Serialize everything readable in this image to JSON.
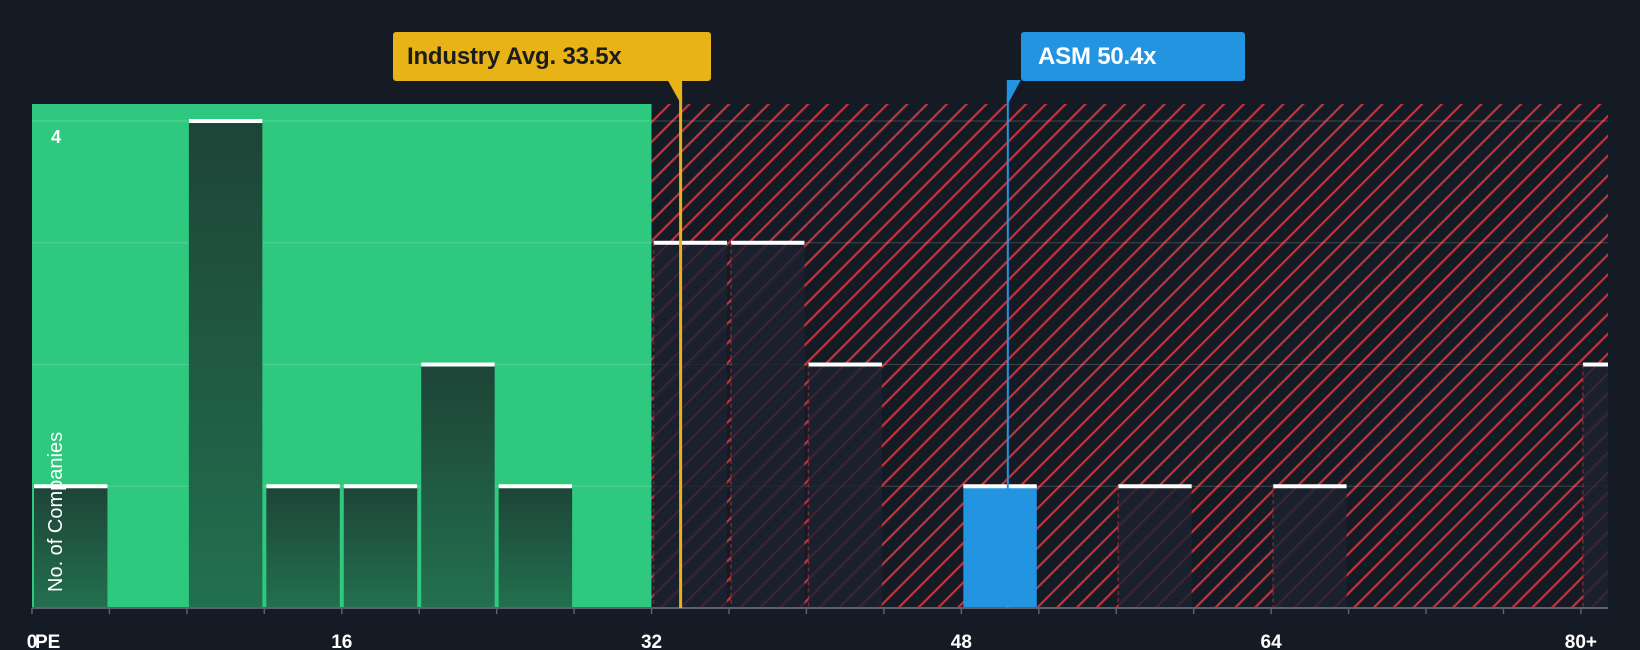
{
  "chart_data": {
    "type": "bar",
    "xlabel": "PE",
    "ylabel": "No. of Companies",
    "x_ticks": [
      "0",
      "16",
      "32",
      "48",
      "64",
      "80+"
    ],
    "x_tick_values": [
      0,
      16,
      32,
      48,
      64,
      80
    ],
    "y_ticks": [
      "4"
    ],
    "xlim": [
      0,
      81.4
    ],
    "ylim": [
      0,
      4.14
    ],
    "bin_width": 4,
    "bars": [
      {
        "start": 0,
        "count": 1
      },
      {
        "start": 8,
        "count": 4
      },
      {
        "start": 12,
        "count": 1
      },
      {
        "start": 16,
        "count": 1
      },
      {
        "start": 20,
        "count": 2
      },
      {
        "start": 24,
        "count": 1
      },
      {
        "start": 32,
        "count": 3
      },
      {
        "start": 36,
        "count": 3
      },
      {
        "start": 40,
        "count": 2
      },
      {
        "start": 48,
        "count": 1,
        "highlight": true
      },
      {
        "start": 56,
        "count": 1
      },
      {
        "start": 64,
        "count": 1
      },
      {
        "start": 80,
        "count": 2
      }
    ],
    "industry_avg": {
      "label": "Industry Avg. 33.5x",
      "value": 33.5
    },
    "company": {
      "label": "ASM 50.4x",
      "value": 50.4
    },
    "colors": {
      "background": "#151b24",
      "undervalued_zone": "#2ec97e",
      "overvalued_zone": "#151b24",
      "hatch": "#c0343f",
      "bar_in_green": "#1f4a3a",
      "bar_in_red": "#1c2230",
      "bar_cap": "#ffffff",
      "company_bar": "#2394e0",
      "industry_line": "#e8b317",
      "company_line": "#2394e0",
      "tick_text": "#ffffff"
    },
    "grid": true
  }
}
